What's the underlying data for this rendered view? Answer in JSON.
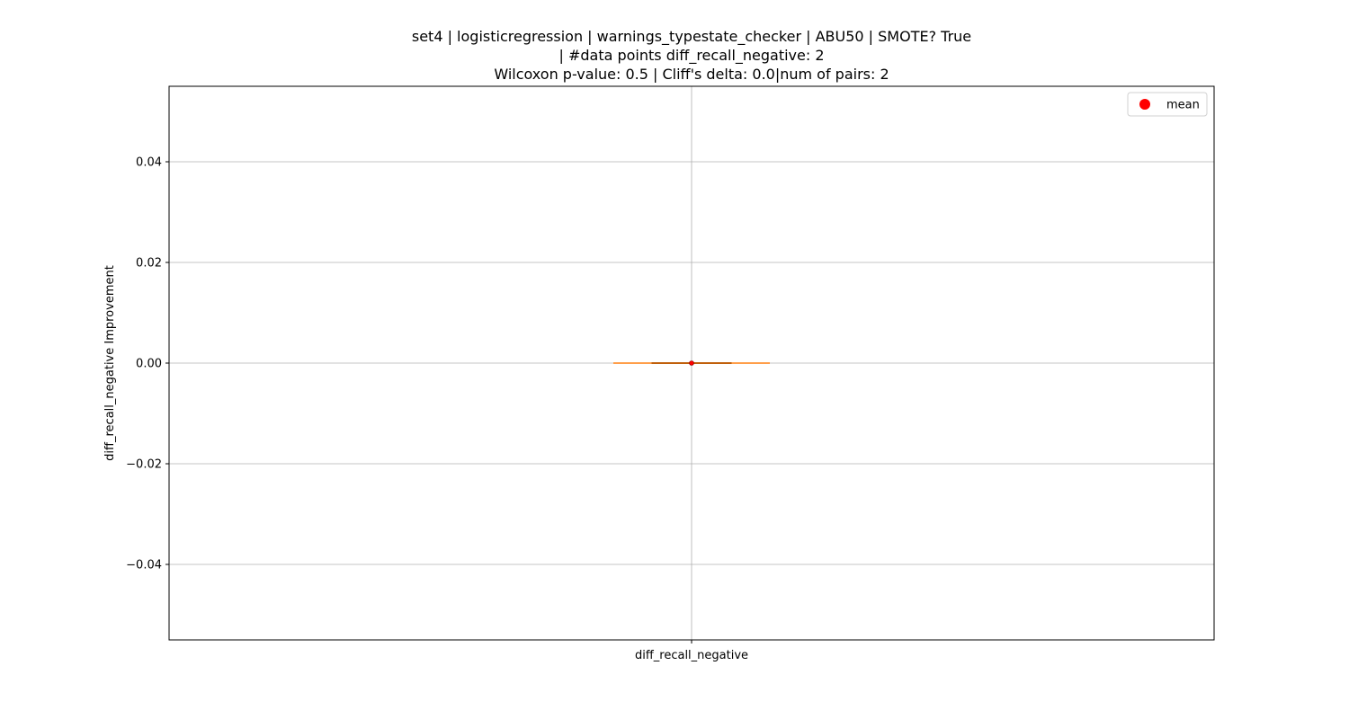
{
  "chart_data": {
    "type": "box",
    "title_lines": [
      "set4 | logisticregression | warnings_typestate_checker | ABU50 | SMOTE? True",
      "| #data points diff_recall_negative: 2",
      "Wilcoxon p-value: 0.5 | Cliff's delta: 0.0|num of pairs: 2"
    ],
    "categories": [
      "diff_recall_negative"
    ],
    "xlabel": "",
    "ylabel": "diff_recall_negative Improvement",
    "ylim": [
      -0.055,
      0.055
    ],
    "yticks": [
      -0.04,
      -0.02,
      0.0,
      0.02,
      0.04
    ],
    "ytick_labels": [
      "−0.04",
      "−0.02",
      "0.00",
      "0.02",
      "0.04"
    ],
    "grid": true,
    "boxes": [
      {
        "category": "diff_recall_negative",
        "min": 0.0,
        "q1": 0.0,
        "median": 0.0,
        "q3": 0.0,
        "max": 0.0,
        "mean": 0.0
      }
    ],
    "legend": {
      "placement": "top-right",
      "entries": [
        {
          "label": "mean",
          "marker": "circle",
          "color": "#ff0000"
        }
      ]
    },
    "colors": {
      "median": "#ff7f0e",
      "mean": "#ff0000",
      "box": "#000000",
      "grid": "#b0b0b0"
    }
  }
}
